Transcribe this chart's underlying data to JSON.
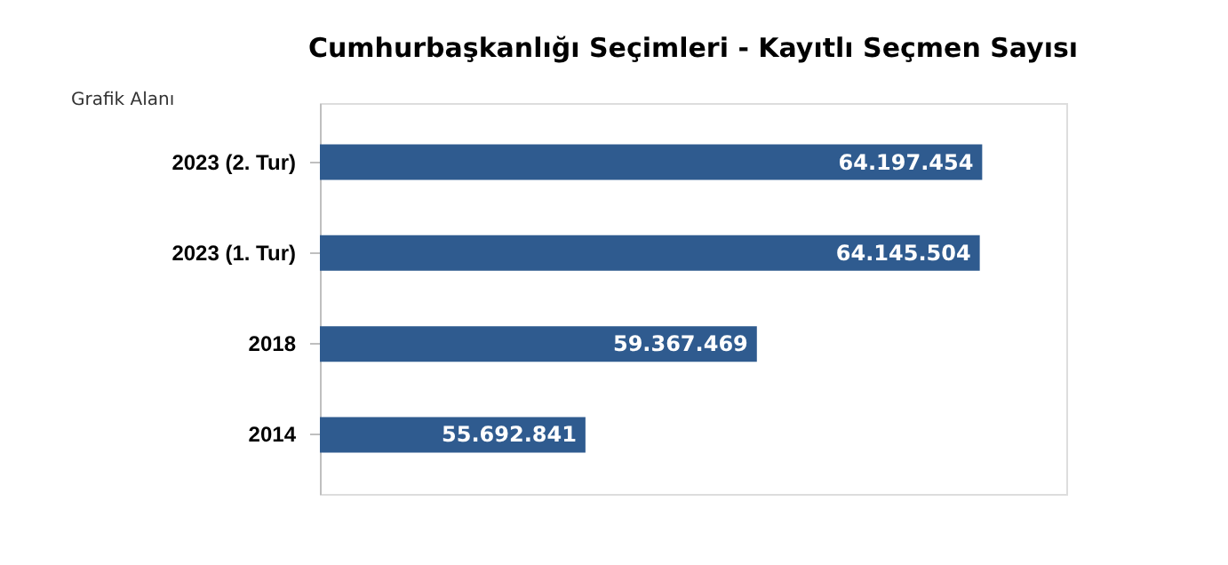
{
  "chart_data": {
    "type": "bar",
    "orientation": "horizontal",
    "title": "Cumhurbaşkanlığı Seçimleri - Kayıtlı Seçmen Sayısı",
    "categories": [
      "2023 (2. Tur)",
      "2023 (1. Tur)",
      "2018",
      "2014"
    ],
    "values": [
      64197454,
      64145504,
      59367469,
      55692841
    ],
    "value_labels": [
      "64.197.454",
      "64.145.504",
      "59.367.469",
      "55.692.841"
    ],
    "color": "#2f5b8f",
    "xlim": [
      50000000,
      66000000
    ],
    "tick_labels": "y",
    "grid": false,
    "annotations": [
      "Grafik Alanı"
    ]
  }
}
